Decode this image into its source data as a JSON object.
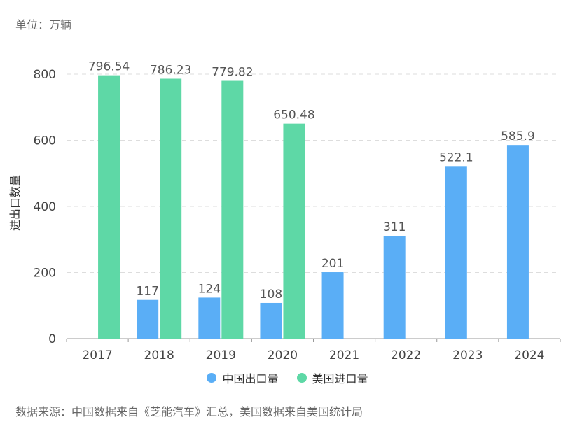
{
  "unit_label": "单位：万辆",
  "source_note": "数据来源：中国数据来自《芝能汽车》汇总，美国数据来自美国统计局",
  "colors": {
    "china": "#5aaef6",
    "usa": "#5ed8a6",
    "grid": "#dddddd",
    "axis": "#999999"
  },
  "chart_data": {
    "type": "bar",
    "title": "",
    "xlabel": "",
    "ylabel": "进出口数量",
    "ylim": [
      0,
      800
    ],
    "yticks": [
      0,
      200,
      400,
      600,
      800
    ],
    "categories": [
      "2017",
      "2018",
      "2019",
      "2020",
      "2021",
      "2022",
      "2023",
      "2024"
    ],
    "series": [
      {
        "name": "中国出口量",
        "values": [
          null,
          117,
          124,
          108,
          201,
          311,
          522.1,
          585.9
        ],
        "labels": [
          "",
          "117",
          "124",
          "108",
          "201",
          "311",
          "522.1",
          "585.9"
        ]
      },
      {
        "name": "美国进口量",
        "values": [
          796.54,
          786.23,
          779.82,
          650.48,
          null,
          null,
          null,
          null
        ],
        "labels": [
          "796.54",
          "786.23",
          "779.82",
          "650.48",
          "",
          "",
          "",
          ""
        ]
      }
    ],
    "grid": true,
    "legend_position": "bottom"
  }
}
